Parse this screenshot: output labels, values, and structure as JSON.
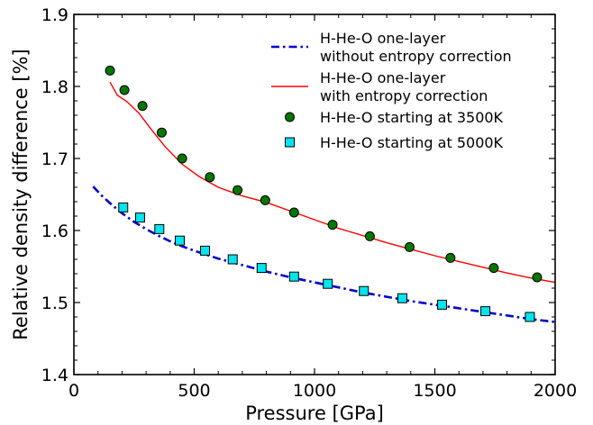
{
  "chart_data": {
    "type": "scatter",
    "xlabel": "Pressure [GPa]",
    "ylabel": "Relative density difference [%]",
    "xlim": [
      0,
      2000
    ],
    "ylim": [
      1.4,
      1.9
    ],
    "x_ticks": [
      0,
      500,
      1000,
      1500,
      2000
    ],
    "y_ticks": [
      1.4,
      1.5,
      1.6,
      1.7,
      1.8,
      1.9
    ],
    "x_tick_labels": [
      "0",
      "500",
      "1000",
      "1500",
      "2000"
    ],
    "y_tick_labels": [
      "1.4",
      "1.5",
      "1.6",
      "1.7",
      "1.8",
      "1.9"
    ],
    "grid": false,
    "legend_position": "top-right",
    "series": [
      {
        "name_lines": [
          "H-He-O one-layer",
          "without entropy correction"
        ],
        "kind": "line",
        "style": "dashdot",
        "color": "#0000cc",
        "x": [
          80,
          120,
          160,
          200,
          250,
          300,
          350,
          400,
          450,
          500,
          600,
          700,
          800,
          900,
          1000,
          1100,
          1200,
          1300,
          1400,
          1500,
          1600,
          1700,
          1800,
          1900,
          2000
        ],
        "y": [
          1.661,
          1.647,
          1.635,
          1.624,
          1.612,
          1.602,
          1.593,
          1.585,
          1.578,
          1.572,
          1.561,
          1.552,
          1.543,
          1.535,
          1.528,
          1.521,
          1.514,
          1.508,
          1.502,
          1.497,
          1.492,
          1.487,
          1.482,
          1.477,
          1.473
        ]
      },
      {
        "name_lines": [
          "H-He-O one-layer",
          "with entropy correction"
        ],
        "kind": "line",
        "style": "solid",
        "color": "#ff0000",
        "x": [
          150,
          180,
          220,
          270,
          320,
          380,
          450,
          520,
          600,
          700,
          800,
          900,
          1000,
          1100,
          1200,
          1300,
          1400,
          1500,
          1600,
          1700,
          1800,
          1900,
          2000
        ],
        "y": [
          1.806,
          1.788,
          1.779,
          1.763,
          1.741,
          1.716,
          1.692,
          1.675,
          1.66,
          1.648,
          1.639,
          1.627,
          1.615,
          1.603,
          1.593,
          1.583,
          1.574,
          1.565,
          1.557,
          1.549,
          1.541,
          1.534,
          1.528
        ]
      },
      {
        "name_lines": [
          "H-He-O starting at 3500K"
        ],
        "kind": "marker",
        "marker": "circle",
        "color": "#007700",
        "x": [
          150,
          210,
          285,
          365,
          450,
          565,
          680,
          795,
          915,
          1075,
          1230,
          1395,
          1565,
          1745,
          1925
        ],
        "y": [
          1.822,
          1.795,
          1.773,
          1.736,
          1.7,
          1.674,
          1.656,
          1.642,
          1.625,
          1.608,
          1.592,
          1.577,
          1.562,
          1.548,
          1.535
        ]
      },
      {
        "name_lines": [
          "H-He-O starting at 5000K"
        ],
        "kind": "marker",
        "marker": "square",
        "color": "#00e5ee",
        "x": [
          205,
          275,
          355,
          440,
          545,
          660,
          780,
          915,
          1055,
          1205,
          1365,
          1530,
          1710,
          1895
        ],
        "y": [
          1.632,
          1.618,
          1.602,
          1.586,
          1.572,
          1.56,
          1.548,
          1.536,
          1.526,
          1.516,
          1.506,
          1.497,
          1.488,
          1.48
        ]
      }
    ]
  }
}
